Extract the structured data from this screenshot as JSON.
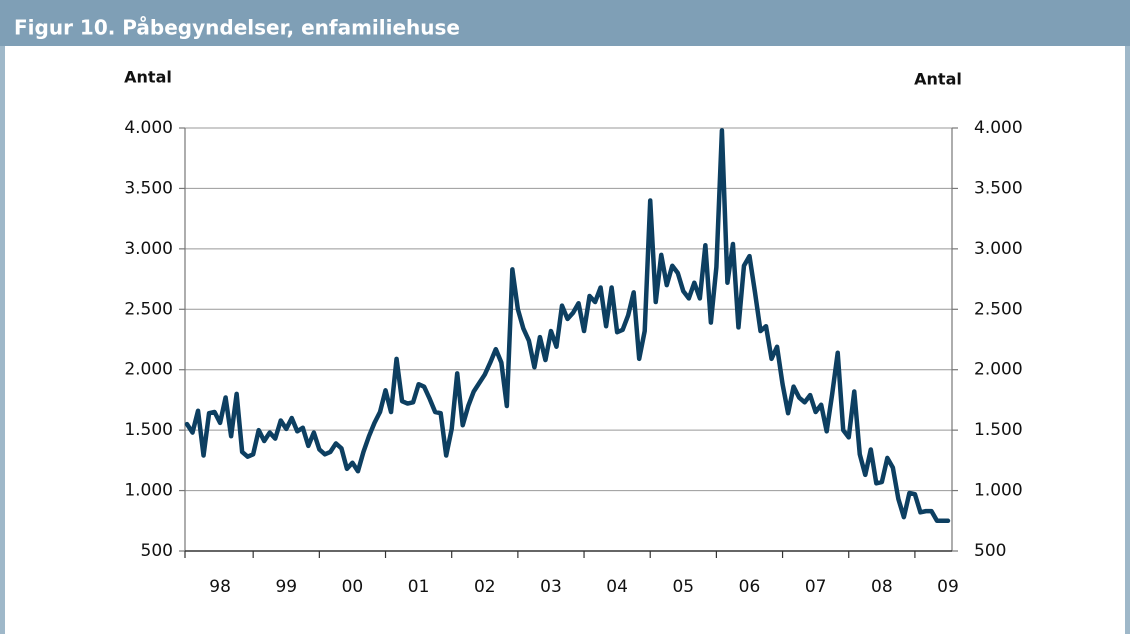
{
  "chart_data": {
    "type": "line",
    "title": "Figur 10. Påbegyndelser, enfamiliehuse",
    "y_label": "Antal",
    "y2_label": "Antal",
    "categories": [
      null,
      null,
      null,
      null,
      null,
      null,
      "98",
      null,
      null,
      null,
      null,
      null,
      null,
      null,
      null,
      null,
      null,
      null,
      "99",
      null,
      null,
      null,
      null,
      null,
      null,
      null,
      null,
      null,
      null,
      null,
      "00",
      null,
      null,
      null,
      null,
      null,
      null,
      null,
      null,
      null,
      null,
      null,
      "01",
      null,
      null,
      null,
      null,
      null,
      null,
      null,
      null,
      null,
      null,
      null,
      "02",
      null,
      null,
      null,
      null,
      null,
      null,
      null,
      null,
      null,
      null,
      null,
      "03",
      null,
      null,
      null,
      null,
      null,
      null,
      null,
      null,
      null,
      null,
      null,
      "04",
      null,
      null,
      null,
      null,
      null,
      null,
      null,
      null,
      null,
      null,
      null,
      "05",
      null,
      null,
      null,
      null,
      null,
      null,
      null,
      null,
      null,
      null,
      null,
      "06",
      null,
      null,
      null,
      null,
      null,
      null,
      null,
      null,
      null,
      null,
      null,
      "07",
      null,
      null,
      null,
      null,
      null,
      null,
      null,
      null,
      null,
      null,
      null,
      "08",
      null,
      null,
      null,
      null,
      null,
      null,
      null,
      null,
      null,
      null,
      null,
      "09"
    ],
    "series": [
      {
        "name": "Påbegyndelser, enfamiliehuse",
        "color": "#0d3f61",
        "values": [
          1550,
          1480,
          1660,
          1290,
          1640,
          1650,
          1560,
          1770,
          1450,
          1800,
          1320,
          1280,
          1300,
          1500,
          1410,
          1480,
          1430,
          1580,
          1510,
          1600,
          1490,
          1520,
          1370,
          1480,
          1340,
          1300,
          1320,
          1390,
          1350,
          1180,
          1230,
          1160,
          1320,
          1450,
          1560,
          1650,
          1830,
          1650,
          2090,
          1740,
          1720,
          1730,
          1880,
          1860,
          1760,
          1650,
          1640,
          1290,
          1510,
          1970,
          1540,
          1700,
          1820,
          1890,
          1960,
          2060,
          2170,
          2060,
          1700,
          2830,
          2500,
          2340,
          2240,
          2020,
          2270,
          2080,
          2320,
          2190,
          2530,
          2420,
          2470,
          2550,
          2320,
          2610,
          2560,
          2680,
          2360,
          2680,
          2310,
          2330,
          2450,
          2640,
          2090,
          2320,
          3400,
          2560,
          2950,
          2700,
          2860,
          2800,
          2650,
          2590,
          2720,
          2590,
          3030,
          2390,
          2850,
          3980,
          2720,
          3040,
          2350,
          2860,
          2940,
          2640,
          2320,
          2360,
          2090,
          2190,
          1880,
          1640,
          1860,
          1770,
          1730,
          1790,
          1650,
          1710,
          1490,
          1800,
          2140,
          1500,
          1440,
          1820,
          1300,
          1130,
          1340,
          1060,
          1070,
          1270,
          1190,
          930,
          780,
          980,
          970,
          820,
          830,
          830,
          750,
          750,
          750
        ]
      }
    ],
    "ylim": [
      500,
      4000
    ],
    "yticks": [
      {
        "value": 500,
        "label": "500"
      },
      {
        "value": 1000,
        "label": "1.000"
      },
      {
        "value": 1500,
        "label": "1.500"
      },
      {
        "value": 2000,
        "label": "2.000"
      },
      {
        "value": 2500,
        "label": "2.500"
      },
      {
        "value": 3000,
        "label": "3.000"
      },
      {
        "value": 3500,
        "label": "3.500"
      },
      {
        "value": 4000,
        "label": "4.000"
      }
    ],
    "y2lim": [
      500,
      4000
    ],
    "y2ticks": [
      {
        "value": 500,
        "label": "500"
      },
      {
        "value": 1000,
        "label": "1.000"
      },
      {
        "value": 1500,
        "label": "1.500"
      },
      {
        "value": 2000,
        "label": "2.000"
      },
      {
        "value": 2500,
        "label": "2.500"
      },
      {
        "value": 3000,
        "label": "3.000"
      },
      {
        "value": 3500,
        "label": "3.500"
      },
      {
        "value": 4000,
        "label": "4.000"
      }
    ],
    "grid": true
  }
}
